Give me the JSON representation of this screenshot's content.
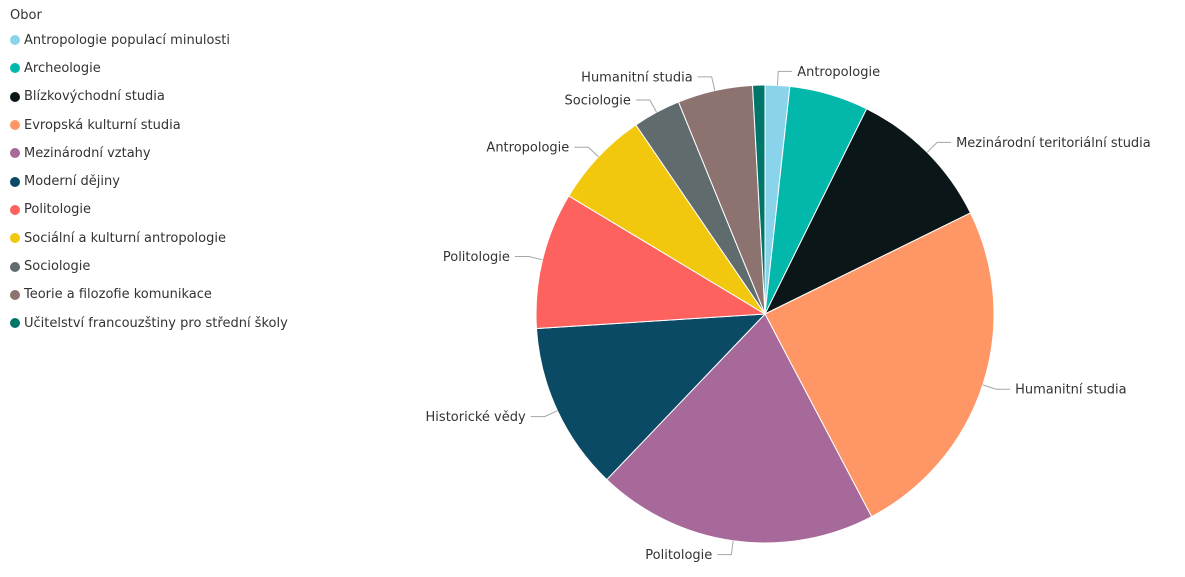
{
  "legend": {
    "title": "Obor",
    "items": [
      {
        "label": "Antropologie populací minulosti",
        "color": "#8AD4EB"
      },
      {
        "label": "Archeologie",
        "color": "#01B8AA"
      },
      {
        "label": "Blízkovýchodní studia",
        "color": "#0B1618"
      },
      {
        "label": "Evropská kulturní studia",
        "color": "#FE9666"
      },
      {
        "label": "Mezinárodní vztahy",
        "color": "#A66999"
      },
      {
        "label": "Moderní dějiny",
        "color": "#0B4A64"
      },
      {
        "label": "Politologie",
        "color": "#FD625E"
      },
      {
        "label": "Sociální a kulturní antropologie",
        "color": "#F2C80F"
      },
      {
        "label": "Sociologie",
        "color": "#5F6B6D"
      },
      {
        "label": "Teorie a filozofie komunikace",
        "color": "#8C736F"
      },
      {
        "label": "Učitelství francouzštiny pro střední školy",
        "color": "#00766B"
      }
    ]
  },
  "chart_data": {
    "type": "pie",
    "legend_title": "Obor",
    "legend_position": "top-left",
    "slices": [
      {
        "category": "Antropologie populací minulosti",
        "label": "Antropologie",
        "value": 1.8,
        "color": "#8AD4EB"
      },
      {
        "category": "Archeologie",
        "label": "",
        "value": 5.8,
        "color": "#01B8AA"
      },
      {
        "category": "Blízkovýchodní studia",
        "label": "Mezinárodní teritoriální studia",
        "value": 10.8,
        "color": "#0B1618"
      },
      {
        "category": "Evropská kulturní studia",
        "label": "Humanitní studia",
        "value": 25.5,
        "color": "#FE9666"
      },
      {
        "category": "Mezinárodní vztahy",
        "label": "Politologie",
        "value": 20.6,
        "color": "#A66999"
      },
      {
        "category": "Moderní dějiny",
        "label": "Historické vědy",
        "value": 12.3,
        "color": "#0B4A64"
      },
      {
        "category": "Politologie",
        "label": "Politologie",
        "value": 10.0,
        "color": "#FD625E"
      },
      {
        "category": "Sociální a kulturní antropologie",
        "label": "Antropologie",
        "value": 7.1,
        "color": "#F2C80F"
      },
      {
        "category": "Sociologie",
        "label": "Sociologie",
        "value": 3.5,
        "color": "#5F6B6D"
      },
      {
        "category": "Teorie a filozofie komunikace",
        "label": "Humanitní studia",
        "value": 5.5,
        "color": "#8C736F"
      },
      {
        "category": "Učitelství francouzštiny pro střední školy",
        "label": "",
        "value": 0.9,
        "color": "#00766B"
      }
    ]
  }
}
